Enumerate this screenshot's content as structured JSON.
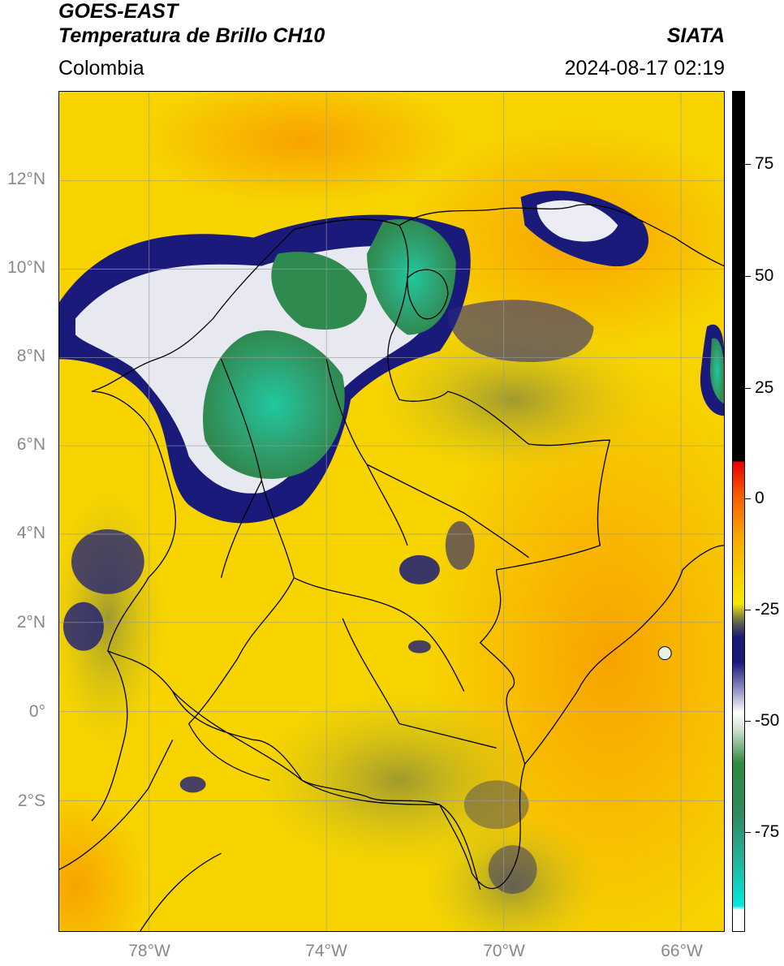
{
  "header": {
    "title_line_1": "GOES-EAST",
    "title_line_2": "Temperatura de Brillo CH10",
    "subtitle": "Colombia",
    "brand": "SIATA",
    "timestamp": "2024-08-17 02:19"
  },
  "map": {
    "latitude_labels": [
      "12°N",
      "10°N",
      "8°N",
      "6°N",
      "4°N",
      "2°N",
      "0°",
      "2°S"
    ],
    "longitude_labels": [
      "78°W",
      "74°W",
      "70°W",
      "66°W"
    ],
    "colors": {
      "warm_background": "#f7d400",
      "warm_orange": "#f8a800",
      "cold_navy": "#1a1a7a",
      "cold_white": "#f0f0f0",
      "cold_green": "#2f8a50",
      "coldest_teal": "#20c8a0",
      "border_lines": "#000000",
      "gridlines": "#9a9a9a"
    }
  },
  "colorbar": {
    "tick_labels": [
      "75",
      "50",
      "25",
      "0",
      "-25",
      "-50",
      "-75"
    ],
    "units_shown": ""
  }
}
